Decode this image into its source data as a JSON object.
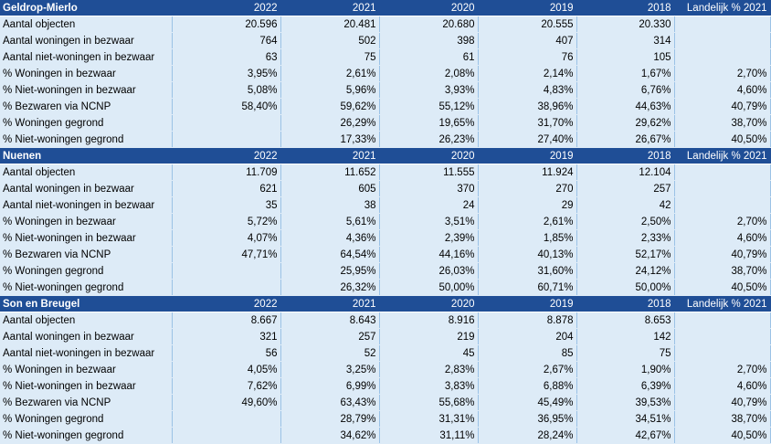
{
  "sections": [
    {
      "name": "Geldrop-Mierlo",
      "headers": [
        "2022",
        "2021",
        "2020",
        "2019",
        "2018",
        "Landelijk % 2021"
      ],
      "rows": [
        {
          "label": "Aantal objecten",
          "cells": [
            "20.596",
            "20.481",
            "20.680",
            "20.555",
            "20.330",
            ""
          ]
        },
        {
          "label": "Aantal woningen in bezwaar",
          "cells": [
            "764",
            "502",
            "398",
            "407",
            "314",
            ""
          ]
        },
        {
          "label": "Aantal niet-woningen in bezwaar",
          "cells": [
            "63",
            "75",
            "61",
            "76",
            "105",
            ""
          ]
        },
        {
          "label": "% Woningen in bezwaar",
          "cells": [
            "3,95%",
            "2,61%",
            "2,08%",
            "2,14%",
            "1,67%",
            "2,70%"
          ]
        },
        {
          "label": "% Niet-woningen in bezwaar",
          "cells": [
            "5,08%",
            "5,96%",
            "3,93%",
            "4,83%",
            "6,76%",
            "4,60%"
          ]
        },
        {
          "label": "% Bezwaren via NCNP",
          "cells": [
            "58,40%",
            "59,62%",
            "55,12%",
            "38,96%",
            "44,63%",
            "40,79%"
          ]
        },
        {
          "label": "% Woningen gegrond",
          "cells": [
            "",
            "26,29%",
            "19,65%",
            "31,70%",
            "29,62%",
            "38,70%"
          ]
        },
        {
          "label": "% Niet-woningen gegrond",
          "cells": [
            "",
            "17,33%",
            "26,23%",
            "27,40%",
            "26,67%",
            "40,50%"
          ]
        }
      ]
    },
    {
      "name": "Nuenen",
      "headers": [
        "2022",
        "2021",
        "2020",
        "2019",
        "2018",
        "Landelijk % 2021"
      ],
      "rows": [
        {
          "label": "Aantal objecten",
          "cells": [
            "11.709",
            "11.652",
            "11.555",
            "11.924",
            "12.104",
            ""
          ]
        },
        {
          "label": "Aantal woningen in bezwaar",
          "cells": [
            "621",
            "605",
            "370",
            "270",
            "257",
            ""
          ]
        },
        {
          "label": "Aantal niet-woningen in bezwaar",
          "cells": [
            "35",
            "38",
            "24",
            "29",
            "42",
            ""
          ]
        },
        {
          "label": "% Woningen in bezwaar",
          "cells": [
            "5,72%",
            "5,61%",
            "3,51%",
            "2,61%",
            "2,50%",
            "2,70%"
          ]
        },
        {
          "label": "% Niet-woningen in bezwaar",
          "cells": [
            "4,07%",
            "4,36%",
            "2,39%",
            "1,85%",
            "2,33%",
            "4,60%"
          ]
        },
        {
          "label": "% Bezwaren via NCNP",
          "cells": [
            "47,71%",
            "64,54%",
            "44,16%",
            "40,13%",
            "52,17%",
            "40,79%"
          ]
        },
        {
          "label": "% Woningen gegrond",
          "cells": [
            "",
            "25,95%",
            "26,03%",
            "31,60%",
            "24,12%",
            "38,70%"
          ]
        },
        {
          "label": "% Niet-woningen gegrond",
          "cells": [
            "",
            "26,32%",
            "50,00%",
            "60,71%",
            "50,00%",
            "40,50%"
          ]
        }
      ]
    },
    {
      "name": "Son en Breugel",
      "headers": [
        "2022",
        "2021",
        "2020",
        "2019",
        "2018",
        "Landelijk % 2021"
      ],
      "rows": [
        {
          "label": "Aantal objecten",
          "cells": [
            "8.667",
            "8.643",
            "8.916",
            "8.878",
            "8.653",
            ""
          ]
        },
        {
          "label": "Aantal woningen in bezwaar",
          "cells": [
            "321",
            "257",
            "219",
            "204",
            "142",
            ""
          ]
        },
        {
          "label": "Aantal niet-woningen in bezwaar",
          "cells": [
            "56",
            "52",
            "45",
            "85",
            "75",
            ""
          ]
        },
        {
          "label": "% Woningen in bezwaar",
          "cells": [
            "4,05%",
            "3,25%",
            "2,83%",
            "2,67%",
            "1,90%",
            "2,70%"
          ]
        },
        {
          "label": "% Niet-woningen in bezwaar",
          "cells": [
            "7,62%",
            "6,99%",
            "3,83%",
            "6,88%",
            "6,39%",
            "4,60%"
          ]
        },
        {
          "label": "% Bezwaren via NCNP",
          "cells": [
            "49,60%",
            "63,43%",
            "55,68%",
            "45,49%",
            "39,53%",
            "40,79%"
          ]
        },
        {
          "label": "% Woningen gegrond",
          "cells": [
            "",
            "28,79%",
            "31,31%",
            "36,95%",
            "34,51%",
            "38,70%"
          ]
        },
        {
          "label": "% Niet-woningen gegrond",
          "cells": [
            "",
            "34,62%",
            "31,11%",
            "28,24%",
            "42,67%",
            "40,50%"
          ]
        }
      ]
    }
  ],
  "colors": {
    "header_bg": "#1f4e96",
    "header_text": "#ffffff",
    "row_bg": "#ddebf7"
  }
}
